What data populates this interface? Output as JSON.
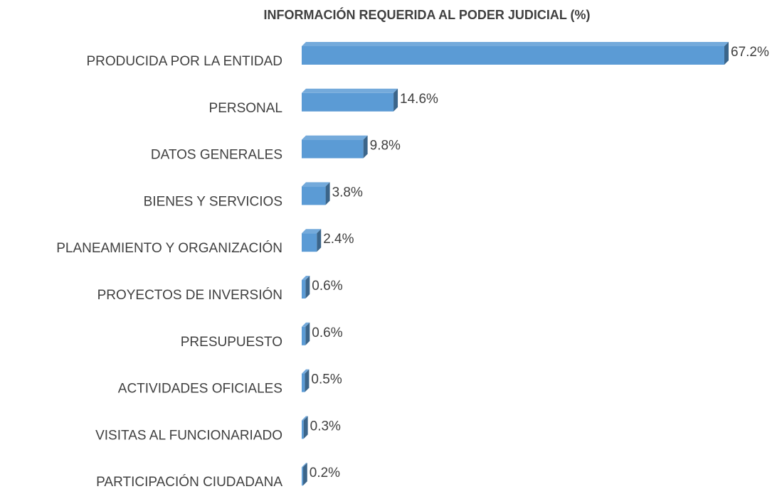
{
  "chart_data": {
    "type": "bar",
    "orientation": "horizontal",
    "title": "INFORMACIÓN REQUERIDA AL PODER JUDICIAL (%)",
    "categories": [
      "PRODUCIDA POR LA ENTIDAD",
      "PERSONAL",
      "DATOS GENERALES",
      "BIENES Y SERVICIOS",
      "PLANEAMIENTO Y ORGANIZACIÓN",
      "PROYECTOS DE INVERSIÓN",
      "PRESUPUESTO",
      "ACTIVIDADES OFICIALES",
      "VISITAS AL FUNCIONARIADO",
      "PARTICIPACIÓN CIUDADANA"
    ],
    "values": [
      67.2,
      14.6,
      9.8,
      3.8,
      2.4,
      0.6,
      0.6,
      0.5,
      0.3,
      0.2
    ],
    "value_labels": [
      "67.2%",
      "14.6%",
      "9.8%",
      "3.8%",
      "2.4%",
      "0.6%",
      "0.6%",
      "0.5%",
      "0.3%",
      "0.2%"
    ],
    "color": "#5b9bd5"
  }
}
